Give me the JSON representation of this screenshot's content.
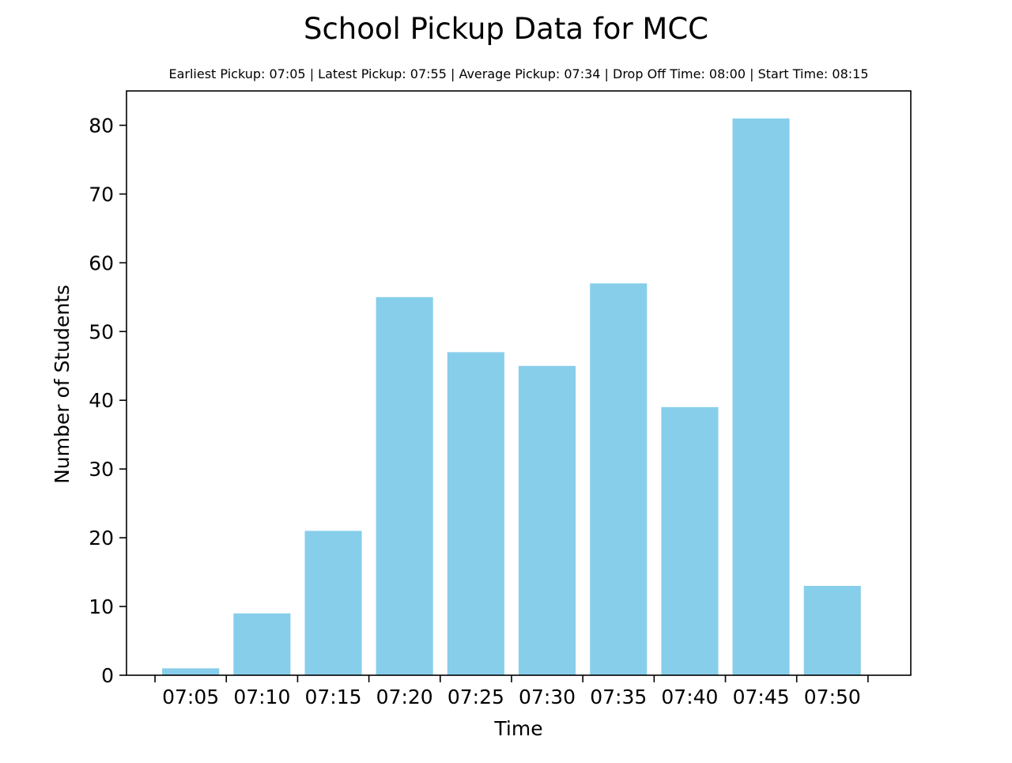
{
  "chart_data": {
    "type": "bar",
    "title": "School Pickup Data for MCC",
    "subtitle": "Earliest Pickup: 07:05 | Latest Pickup: 07:55 | Average Pickup: 07:34 | Drop Off Time: 08:00 | Start Time: 08:15",
    "xlabel": "Time",
    "ylabel": "Number of Students",
    "categories": [
      "07:05",
      "07:10",
      "07:15",
      "07:20",
      "07:25",
      "07:30",
      "07:35",
      "07:40",
      "07:45",
      "07:50"
    ],
    "values": [
      1,
      9,
      21,
      55,
      47,
      45,
      57,
      39,
      81,
      13
    ],
    "ylim": [
      0,
      85
    ],
    "yticks": [
      0,
      10,
      20,
      30,
      40,
      50,
      60,
      70,
      80
    ],
    "bar_color": "#87CEEB",
    "grid": false,
    "legend": "none"
  }
}
